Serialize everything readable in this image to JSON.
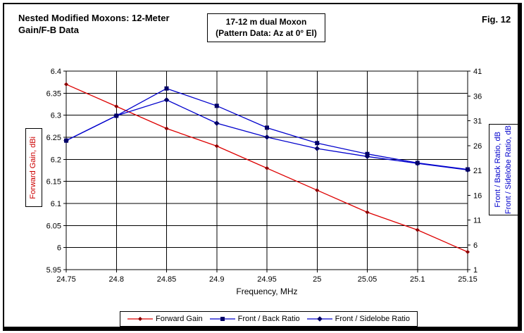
{
  "header": {
    "title": "Nested Modified Moxons: 12-Meter\nGain/F-B Data",
    "annotation": "17-12 m dual Moxon\n(Pattern Data: Az at 0° El)",
    "fig_label": "Fig. 12"
  },
  "chart_data": {
    "type": "line",
    "title": "Nested Modified Moxons: 12-Meter Gain/F-B Data",
    "x": [
      24.75,
      24.8,
      24.85,
      24.9,
      24.95,
      25,
      25.05,
      25.1,
      25.15
    ],
    "x_tick_labels": [
      "24.75",
      "24.8",
      "24.85",
      "24.9",
      "24.95",
      "25",
      "25.05",
      "25.1",
      "25.15"
    ],
    "xlabel": "Frequency, MHz",
    "grid": true,
    "legend_position": "bottom",
    "left_axis": {
      "title": "Forward Gain, dBi",
      "min": 5.95,
      "max": 6.4,
      "tick_step": 0.05,
      "tick_labels": [
        "6.4",
        "6.35",
        "6.3",
        "6.25",
        "6.2",
        "6.15",
        "6.1",
        "6.05",
        "6",
        "5.95"
      ],
      "color": "#cc0000"
    },
    "right_axis": {
      "title_lines": [
        "Front / Back Ratio, dB",
        "Front / Sidelobe Ratio, dB"
      ],
      "min": 1,
      "max": 41,
      "tick_step": 5,
      "tick_labels": [
        "41",
        "36",
        "31",
        "26",
        "21",
        "16",
        "11",
        "6",
        "1"
      ],
      "color": "#0000cc"
    },
    "series": [
      {
        "name": "Forward Gain",
        "axis": "left",
        "color": "#dd0000",
        "marker": "diamond-small",
        "marker_color": "#8b0000",
        "values": [
          6.37,
          6.32,
          6.27,
          6.23,
          6.18,
          6.13,
          6.08,
          6.04,
          5.99
        ]
      },
      {
        "name": "Front / Back Ratio",
        "axis": "right",
        "color": "#0000cc",
        "marker": "square",
        "marker_color": "#000066",
        "values": [
          27,
          32,
          37.5,
          34,
          29.6,
          26.5,
          24.3,
          22.5,
          21.2
        ]
      },
      {
        "name": "Front / Sidelobe Ratio",
        "axis": "right",
        "color": "#0000cc",
        "marker": "diamond",
        "marker_color": "#000066",
        "values": [
          27,
          32,
          35.2,
          30.5,
          27.7,
          25.4,
          23.8,
          22.4,
          21.1
        ]
      }
    ]
  }
}
